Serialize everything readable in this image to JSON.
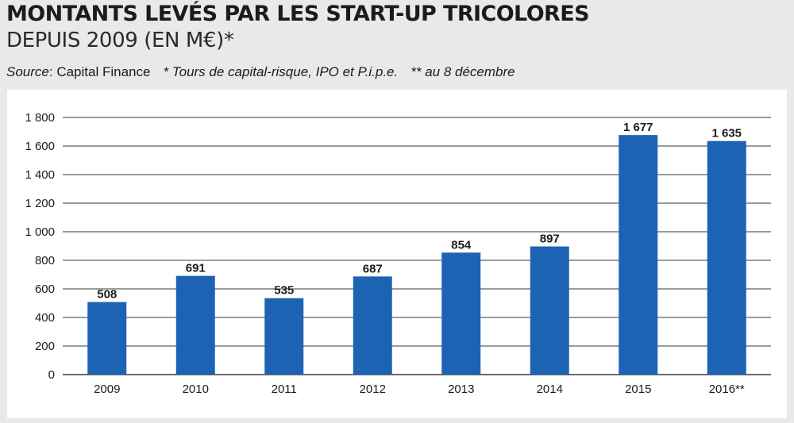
{
  "header": {
    "title": "MONTANTS LEVÉS PAR LES START-UP TRICOLORES",
    "subtitle": "DEPUIS 2009 (EN M€)*",
    "source_prefix": "Source",
    "source_name": ": Capital Finance",
    "note_1": "* Tours de capital-risque, IPO et P.i.p.e.",
    "note_2": "** au 8 décembre"
  },
  "chart_data": {
    "type": "bar",
    "title": "MONTANTS LEVÉS PAR LES START-UP TRICOLORES",
    "subtitle": "DEPUIS 2009 (EN M€)*",
    "categories": [
      "2009",
      "2010",
      "2011",
      "2012",
      "2013",
      "2014",
      "2015",
      "2016**"
    ],
    "values": [
      508,
      691,
      535,
      687,
      854,
      897,
      1677,
      1635
    ],
    "value_labels": [
      "508",
      "691",
      "535",
      "687",
      "854",
      "897",
      "1 677",
      "1 635"
    ],
    "ylim": [
      0,
      1800
    ],
    "yticks": [
      0,
      200,
      400,
      600,
      800,
      1000,
      1200,
      1400,
      1600,
      1800
    ],
    "ytick_labels": [
      "0",
      "200",
      "400",
      "600",
      "800",
      "1 000",
      "1 200",
      "1 400",
      "1 600",
      "1 800"
    ],
    "grid": true,
    "legend": "none",
    "colors": {
      "bar": "#1d63b4",
      "grid": "#3a3a3a",
      "background": "#ffffff",
      "page": "#e9e9e9"
    }
  }
}
